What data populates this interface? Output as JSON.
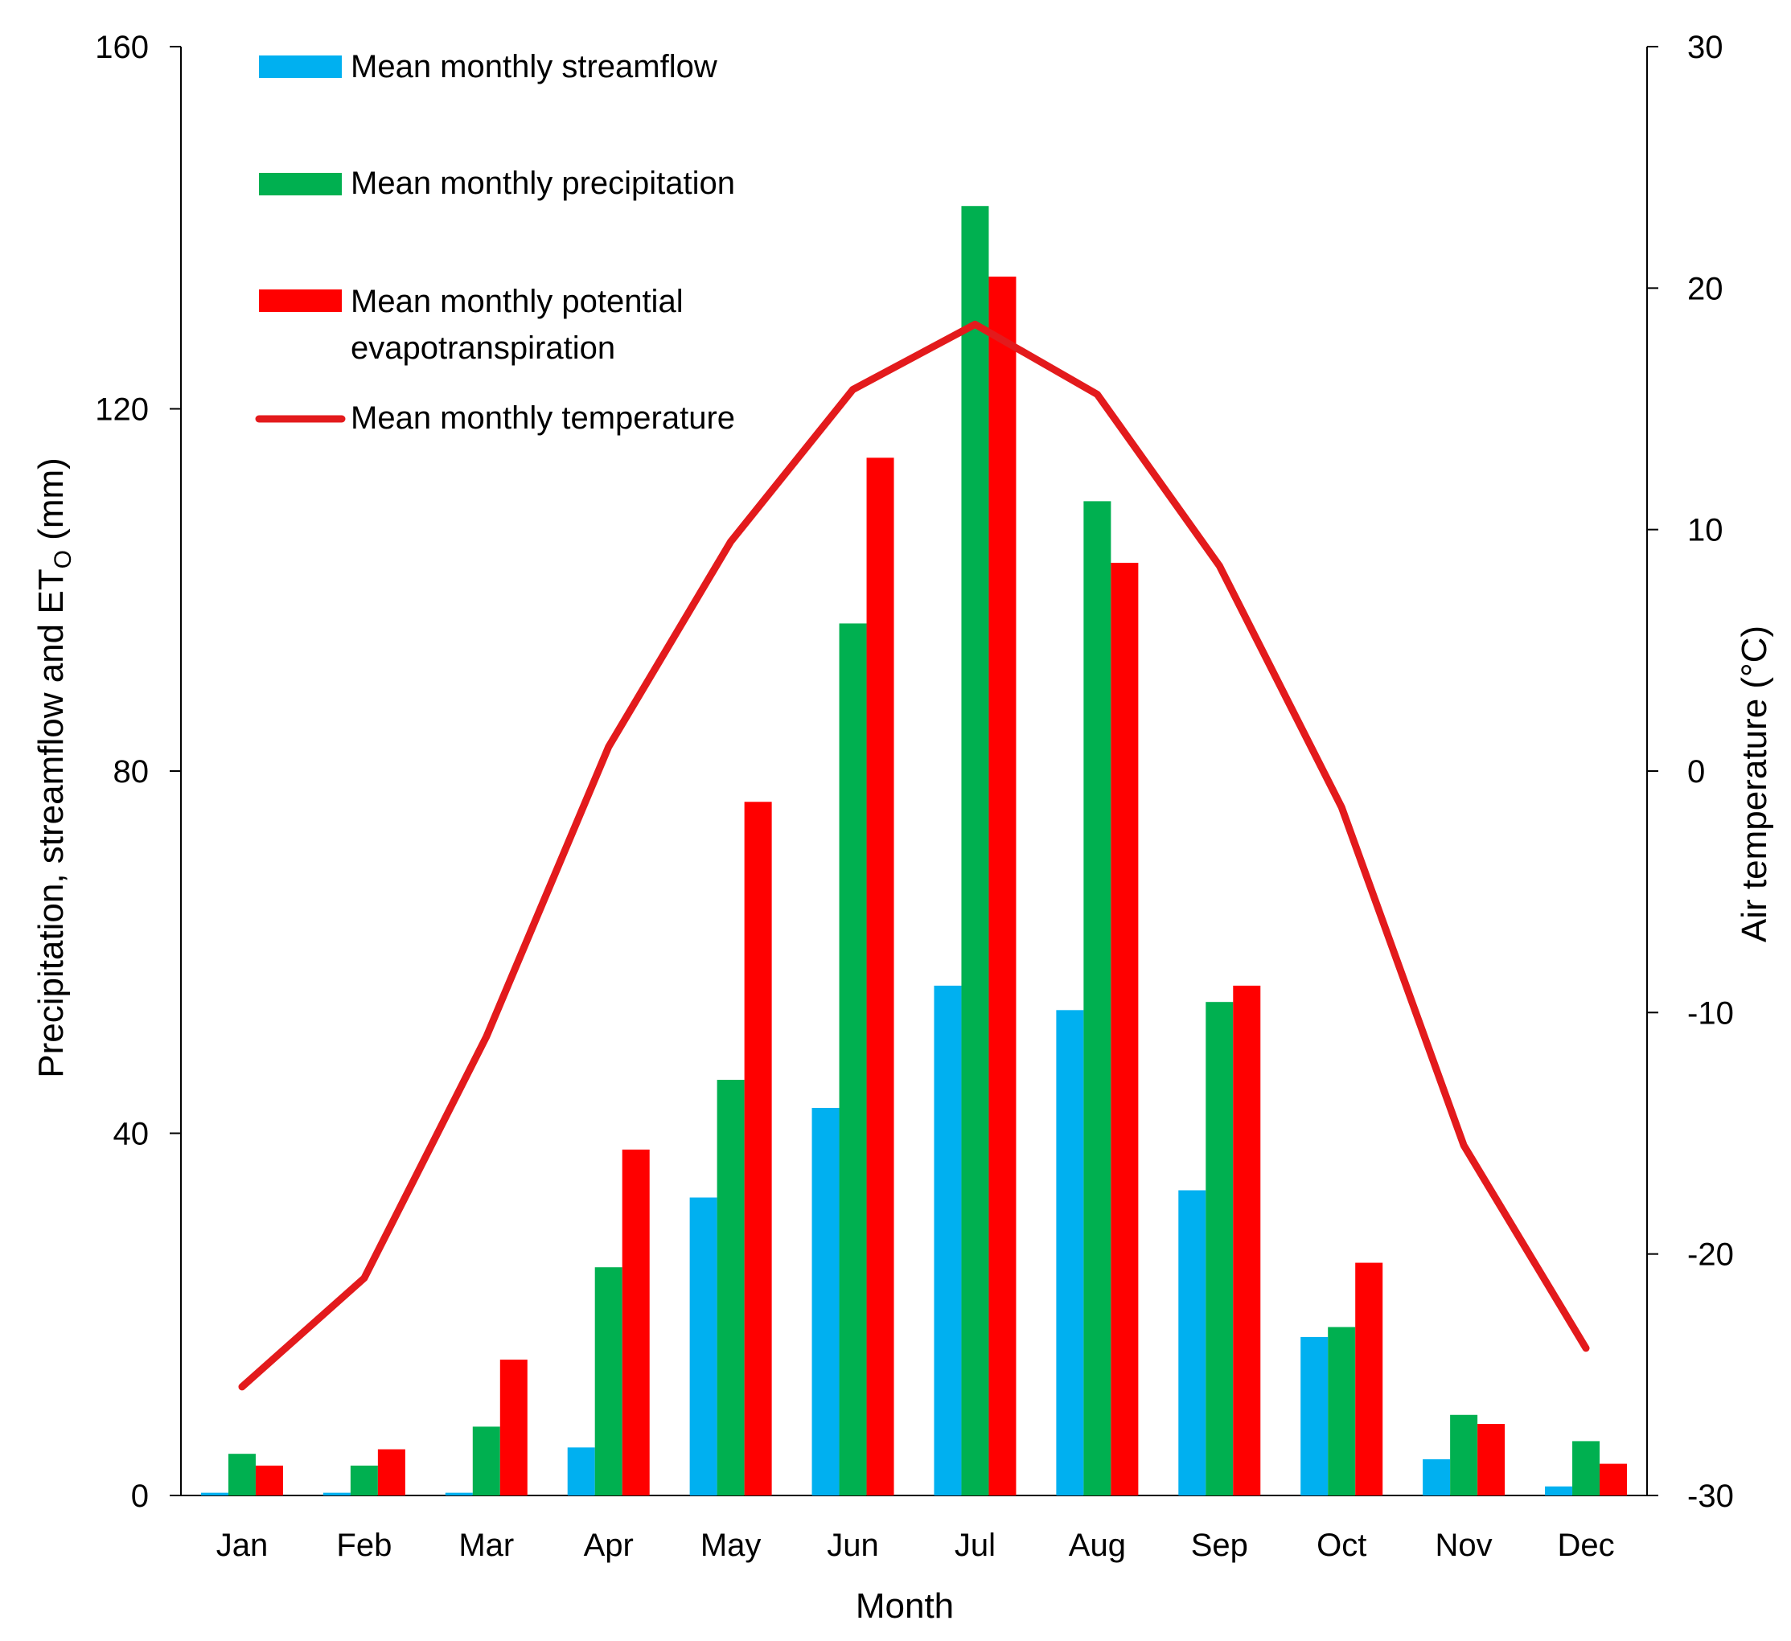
{
  "chart_data": {
    "type": "bar",
    "categories": [
      "Jan",
      "Feb",
      "Mar",
      "Apr",
      "May",
      "Jun",
      "Jul",
      "Aug",
      "Sep",
      "Oct",
      "Nov",
      "Dec"
    ],
    "series": [
      {
        "name": "Mean monthly streamflow",
        "type": "bar",
        "axis": "left",
        "color": "#00B0F0",
        "values": [
          0.3,
          0.3,
          0.3,
          5.3,
          32.9,
          42.8,
          56.3,
          53.6,
          33.7,
          17.5,
          4.0,
          1.0
        ]
      },
      {
        "name": "Mean monthly precipitation",
        "type": "bar",
        "axis": "left",
        "color": "#00B050",
        "values": [
          4.6,
          3.3,
          7.6,
          25.2,
          45.9,
          96.3,
          142.4,
          109.8,
          54.5,
          18.6,
          8.9,
          6.0
        ]
      },
      {
        "name": "Mean monthly potential evapotranspiration",
        "type": "bar",
        "axis": "left",
        "color": "#FF0000",
        "values": [
          3.3,
          5.1,
          15.0,
          38.2,
          76.6,
          114.6,
          134.6,
          103.0,
          56.3,
          25.7,
          7.9,
          3.5
        ]
      },
      {
        "name": "Mean monthly temperature",
        "type": "line",
        "axis": "right",
        "color": "#E31A1C",
        "values": [
          -25.5,
          -21.0,
          -11.0,
          1.0,
          9.5,
          15.8,
          18.5,
          15.6,
          8.5,
          -1.5,
          -15.5,
          -23.9
        ]
      }
    ],
    "legend_labels": [
      [
        "Mean monthly streamflow"
      ],
      [
        "Mean monthly precipitation"
      ],
      [
        "Mean monthly potential",
        "evapotranspiration"
      ],
      [
        "Mean monthly temperature"
      ]
    ],
    "xlabel": "Month",
    "ylabel": "Precipitation,  streamflow and ET",
    "ylabel_subscript": "O",
    "ylabel_suffix": " (mm)",
    "y2label": "Air temperature (°C)",
    "ylim": [
      0,
      160
    ],
    "yticks": [
      0,
      40,
      80,
      120,
      160
    ],
    "y2lim": [
      -30,
      30
    ],
    "y2ticks": [
      -30,
      -20,
      -10,
      0,
      10,
      20,
      30
    ],
    "grid": false,
    "legend_position": "top-left"
  }
}
